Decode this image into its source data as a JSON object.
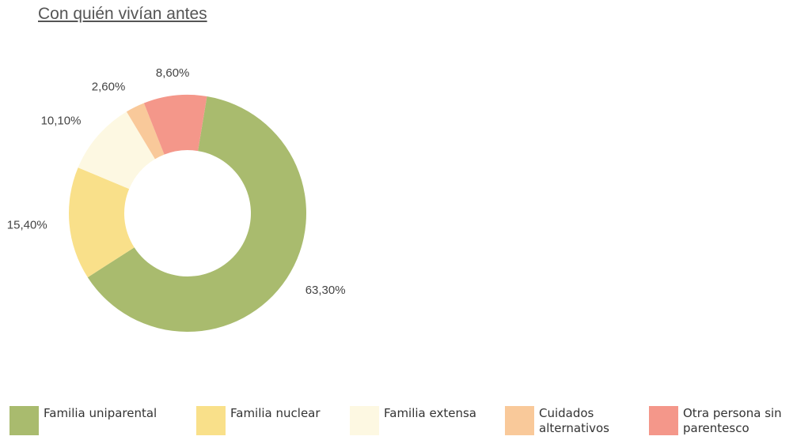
{
  "chart_data": {
    "type": "donut",
    "title": "Con quién vivían antes",
    "categories": [
      "Familia uniparental",
      "Familia nuclear",
      "Familia extensa",
      "Cuidados alternativos",
      "Otra persona sin parentesco"
    ],
    "values": [
      63.3,
      15.4,
      10.1,
      2.6,
      8.6
    ],
    "value_labels": [
      "63,30%",
      "15,40%",
      "10,10%",
      "2,60%",
      "8,60%"
    ],
    "colors": [
      "#a9bb6e",
      "#f9e08a",
      "#fdf8e2",
      "#f9c99a",
      "#f4978a"
    ],
    "legend": "bottom"
  }
}
